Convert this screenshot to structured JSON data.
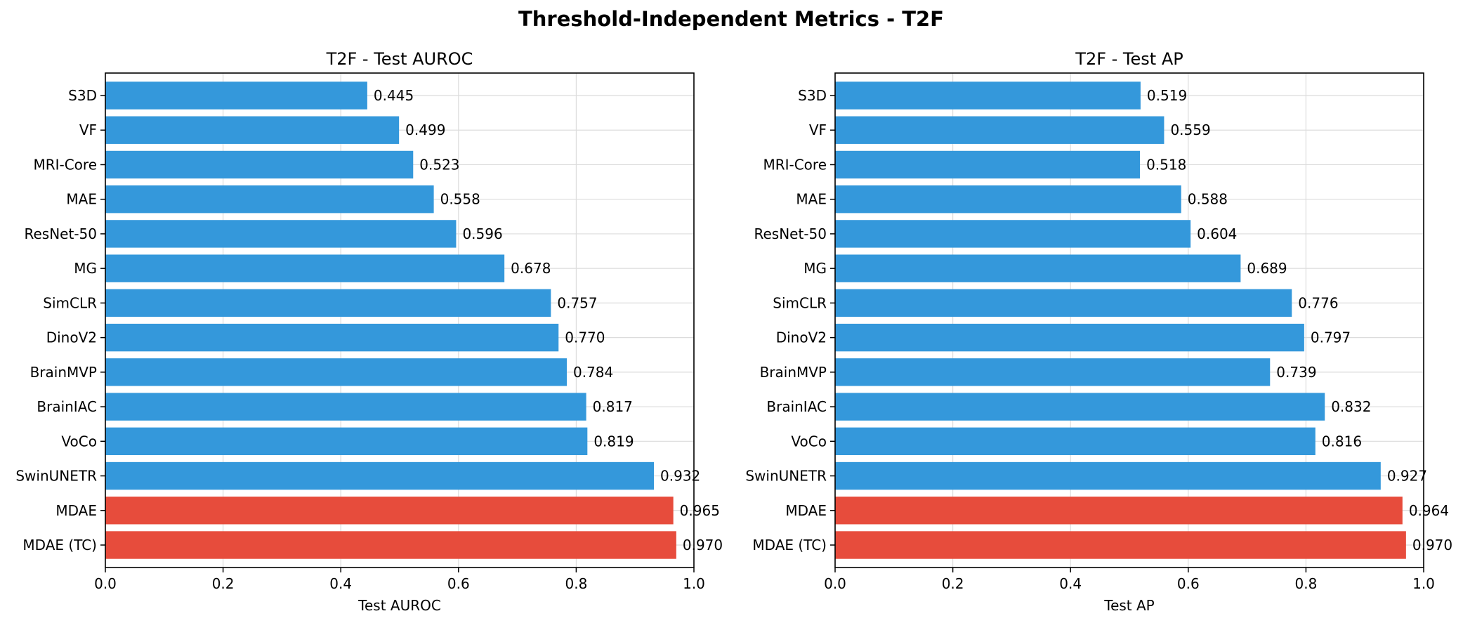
{
  "figure_title": "Threshold-Independent Metrics - T2F",
  "colors": {
    "baseline": "#3498db",
    "highlight": "#e74c3c"
  },
  "chart_data": [
    {
      "type": "bar",
      "orientation": "horizontal",
      "title": "T2F - Test AUROC",
      "xlabel": "Test AUROC",
      "ylabel": "",
      "xlim": [
        0.0,
        1.0
      ],
      "xticks": [
        "0.0",
        "0.2",
        "0.4",
        "0.6",
        "0.8",
        "1.0"
      ],
      "grid": true,
      "categories": [
        "S3D",
        "VF",
        "MRI-Core",
        "MAE",
        "ResNet-50",
        "MG",
        "SimCLR",
        "DinoV2",
        "BrainMVP",
        "BrainIAC",
        "VoCo",
        "SwinUNETR",
        "MDAE",
        "MDAE (TC)"
      ],
      "values": [
        0.445,
        0.499,
        0.523,
        0.558,
        0.596,
        0.678,
        0.757,
        0.77,
        0.784,
        0.817,
        0.819,
        0.932,
        0.965,
        0.97
      ],
      "labels": [
        "0.445",
        "0.499",
        "0.523",
        "0.558",
        "0.596",
        "0.678",
        "0.757",
        "0.770",
        "0.784",
        "0.817",
        "0.819",
        "0.932",
        "0.965",
        "0.970"
      ],
      "highlight": [
        "MDAE",
        "MDAE (TC)"
      ]
    },
    {
      "type": "bar",
      "orientation": "horizontal",
      "title": "T2F - Test AP",
      "xlabel": "Test AP",
      "ylabel": "",
      "xlim": [
        0.0,
        1.0
      ],
      "xticks": [
        "0.0",
        "0.2",
        "0.4",
        "0.6",
        "0.8",
        "1.0"
      ],
      "grid": true,
      "categories": [
        "S3D",
        "VF",
        "MRI-Core",
        "MAE",
        "ResNet-50",
        "MG",
        "SimCLR",
        "DinoV2",
        "BrainMVP",
        "BrainIAC",
        "VoCo",
        "SwinUNETR",
        "MDAE",
        "MDAE (TC)"
      ],
      "values": [
        0.519,
        0.559,
        0.518,
        0.588,
        0.604,
        0.689,
        0.776,
        0.797,
        0.739,
        0.832,
        0.816,
        0.927,
        0.964,
        0.97
      ],
      "labels": [
        "0.519",
        "0.559",
        "0.518",
        "0.588",
        "0.604",
        "0.689",
        "0.776",
        "0.797",
        "0.739",
        "0.832",
        "0.816",
        "0.927",
        "0.964",
        "0.970"
      ],
      "highlight": [
        "MDAE",
        "MDAE (TC)"
      ]
    }
  ]
}
